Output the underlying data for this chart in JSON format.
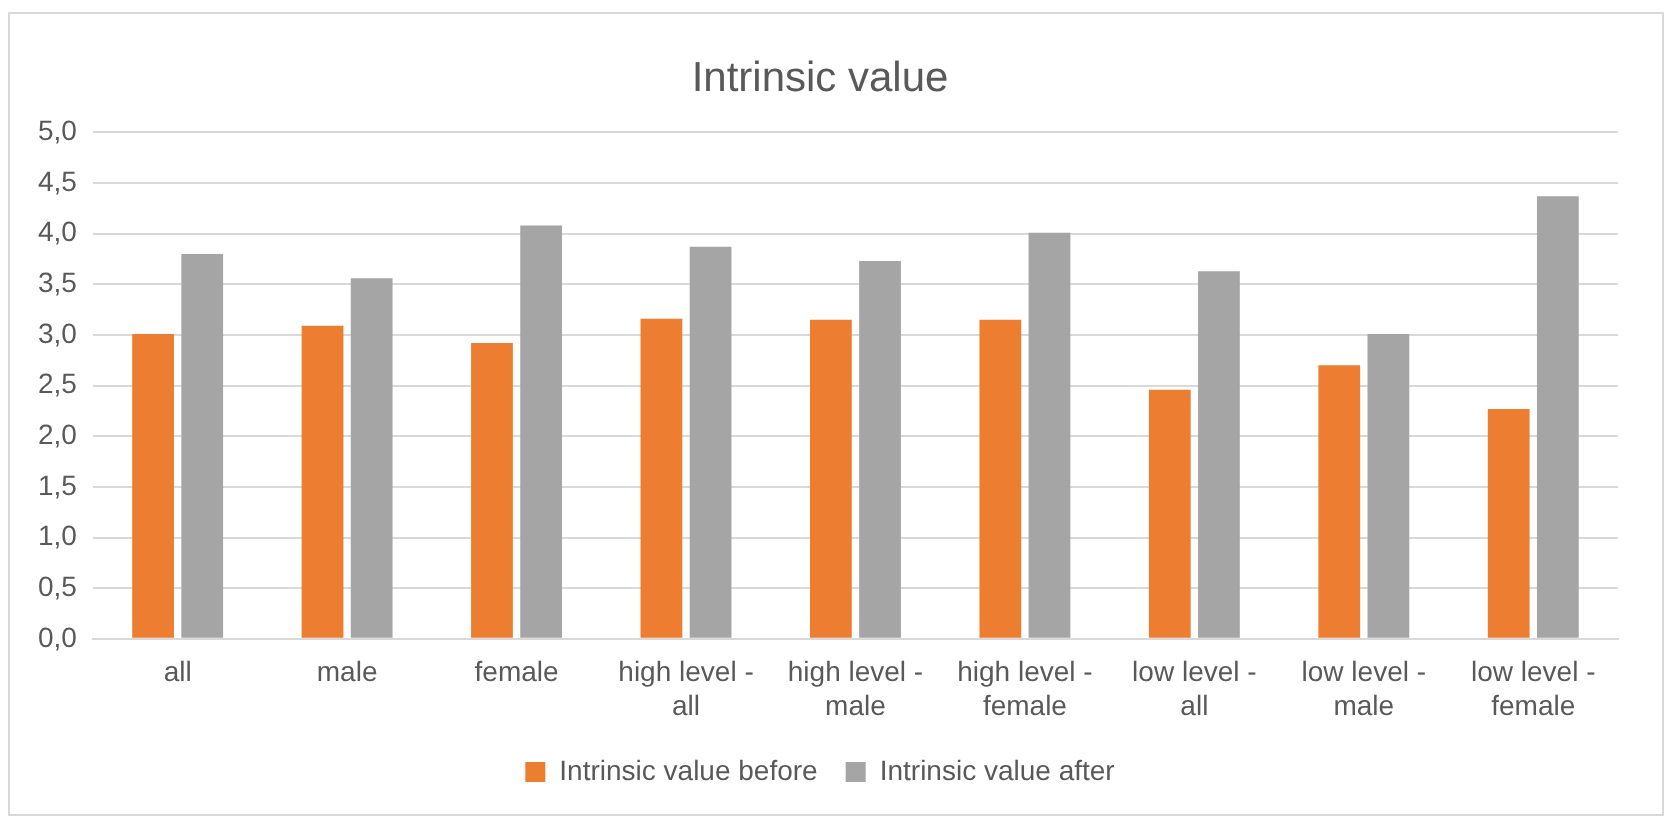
{
  "chart_data": {
    "type": "bar",
    "title": "Intrinsic value",
    "categories": [
      "all",
      "male",
      "female",
      "high level - all",
      "high level - male",
      "high level - female",
      "low level - all",
      "low level - male",
      "low level - female"
    ],
    "series": [
      {
        "name": "Intrinsic value before",
        "color": "#ed7d31",
        "values": [
          3.01,
          3.09,
          2.92,
          3.16,
          3.15,
          3.15,
          2.46,
          2.7,
          2.27
        ]
      },
      {
        "name": "Intrinsic value after",
        "color": "#a5a5a5",
        "values": [
          3.8,
          3.56,
          4.08,
          3.87,
          3.73,
          4.01,
          3.63,
          3.01,
          4.37
        ]
      }
    ],
    "ylim": [
      0,
      5
    ],
    "yticks": [
      {
        "value": 0,
        "label": "0,0"
      },
      {
        "value": 0.5,
        "label": "0,5"
      },
      {
        "value": 1,
        "label": "1,0"
      },
      {
        "value": 1.5,
        "label": "1,5"
      },
      {
        "value": 2,
        "label": "2,0"
      },
      {
        "value": 2.5,
        "label": "2,5"
      },
      {
        "value": 3,
        "label": "3,0"
      },
      {
        "value": 3.5,
        "label": "3,5"
      },
      {
        "value": 4,
        "label": "4,0"
      },
      {
        "value": 4.5,
        "label": "4,5"
      },
      {
        "value": 5,
        "label": "5,0"
      }
    ],
    "grid": "y",
    "legend": "bottom"
  }
}
